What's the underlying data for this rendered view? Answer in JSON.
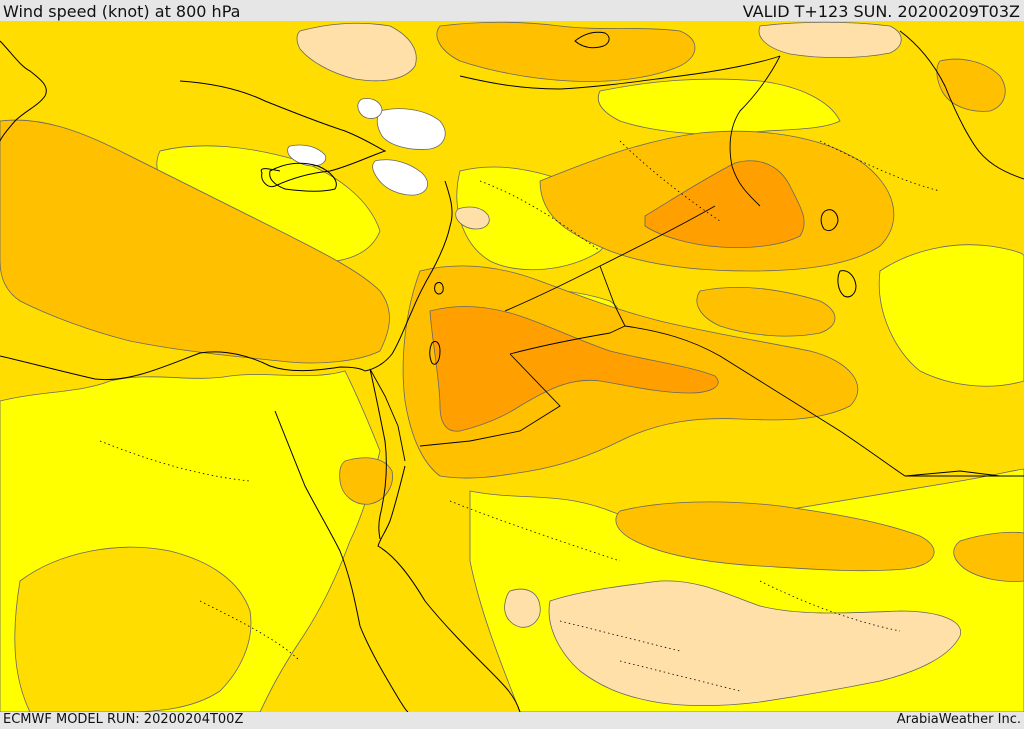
{
  "header": {
    "title": "Wind speed (knot) at 800 hPa",
    "valid": "VALID T+123 SUN. 20200209T03Z"
  },
  "footer": {
    "model_run": "ECMWF MODEL RUN: 20200204T00Z",
    "credit": "ArabiaWeather Inc."
  },
  "colors": {
    "below_low": "#ffffff",
    "low": "#ffe0a8",
    "lightest_band": "#ffff00",
    "band_2": "#ffdd00",
    "band_3": "#ffc000",
    "band_4": "#ffa000",
    "coastline": "#000000",
    "border": "#000000",
    "contour": "#666666"
  }
}
